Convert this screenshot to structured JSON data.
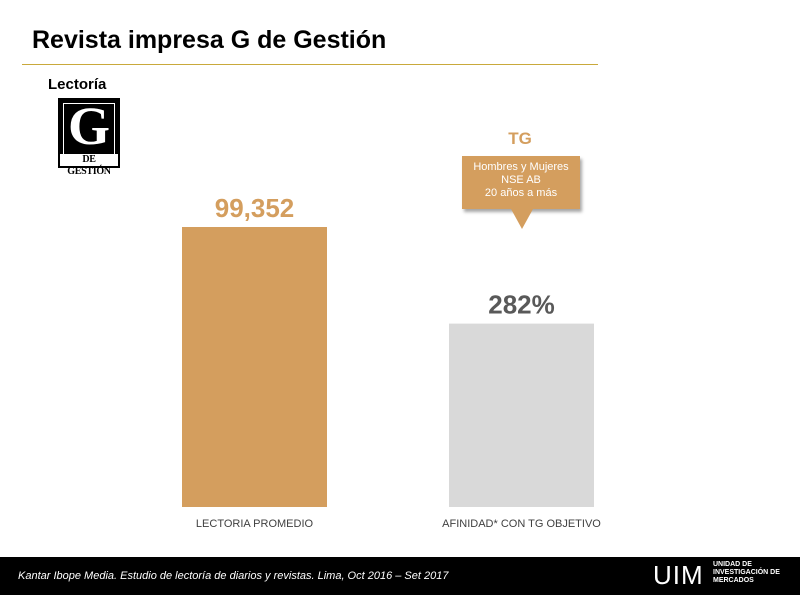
{
  "header": {
    "title": "Revista impresa G de Gestión"
  },
  "section": {
    "label": "Lectoría"
  },
  "logo": {
    "letter": "G",
    "subtitle": "DE GESTIÓN"
  },
  "callout": {
    "heading": "TG",
    "lines": [
      "Hombres y Mujeres",
      "NSE AB",
      "20 años a más"
    ]
  },
  "colors": {
    "bar_primary": "#d49e5e",
    "bar_secondary": "#d9d9d9",
    "label_primary": "#d49e5e",
    "label_secondary": "#595959"
  },
  "chart_data": {
    "type": "bar",
    "categories": [
      "LECTORIA PROMEDIO",
      "AFINIDAD* CON TG OBJETIVO"
    ],
    "bars": [
      {
        "category": "LECTORIA PROMEDIO",
        "label": "99,352",
        "value": 99352,
        "relative_height": 1.0
      },
      {
        "category": "AFINIDAD* CON TG OBJETIVO",
        "label": "282%",
        "value": 282,
        "relative_height": 0.655
      }
    ],
    "title": "",
    "xlabel": "",
    "ylabel": ""
  },
  "footer": {
    "source": "Kantar Ibope Media. Estudio de lectoría de diarios y revistas. Lima, Oct 2016 – Set 2017",
    "logo_mark": "UIM",
    "logo_text_lines": [
      "UNIDAD DE",
      "INVESTIGACIÓN DE",
      "MERCADOS"
    ]
  }
}
